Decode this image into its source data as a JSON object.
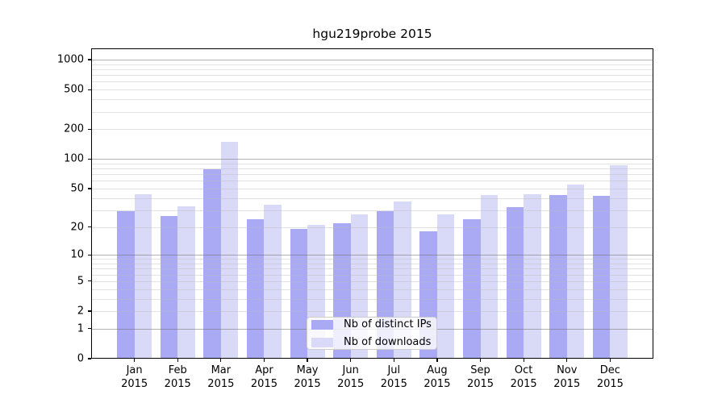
{
  "chart_data": {
    "type": "bar",
    "title": "hgu219probe 2015",
    "categories": [
      "Jan",
      "Feb",
      "Mar",
      "Apr",
      "May",
      "Jun",
      "Jul",
      "Aug",
      "Sep",
      "Oct",
      "Nov",
      "Dec"
    ],
    "x_sublabel": "2015",
    "series": [
      {
        "name": "Nb of distinct IPs",
        "color": "#a9a9f4",
        "values": [
          29,
          26,
          78,
          24,
          19,
          22,
          29,
          18,
          24,
          32,
          43,
          42
        ]
      },
      {
        "name": "Nb of downloads",
        "color": "#d9d9f8",
        "values": [
          44,
          33,
          150,
          34,
          21,
          27,
          37,
          27,
          43,
          44,
          55,
          86
        ]
      }
    ],
    "yticks": [
      0,
      1,
      2,
      5,
      10,
      20,
      50,
      100,
      200,
      500,
      1000
    ],
    "yscale": "log10(1+v)",
    "ylim": [
      0,
      1300
    ],
    "grid": "on",
    "legend_position": "lower center"
  }
}
